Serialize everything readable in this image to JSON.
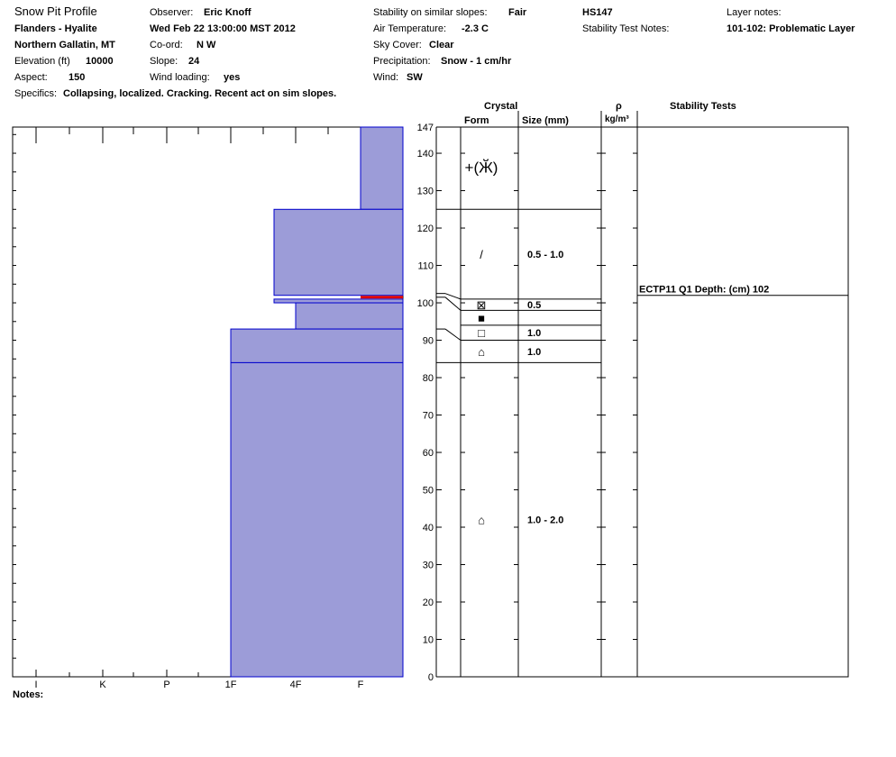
{
  "header": {
    "title": "Snow Pit Profile",
    "location": "Flanders - Hyalite",
    "region": "Northern Gallatin, MT",
    "elevation_label": "Elevation (ft)",
    "elevation": "10000",
    "aspect_label": "Aspect:",
    "aspect": "150",
    "specifics_label": "Specifics:",
    "specifics": "Collapsing, localized. Cracking. Recent act on sim slopes.",
    "observer_label": "Observer:",
    "observer": "Eric Knoff",
    "datetime": "Wed Feb 22 13:00:00 MST 2012",
    "coord_label": "Co-ord:",
    "coord": "N  W",
    "slope_label": "Slope:",
    "slope": "24",
    "wind_loading_label": "Wind loading:",
    "wind_loading": "yes",
    "stability_label": "Stability on similar slopes:",
    "stability": "Fair",
    "air_temp_label": "Air Temperature:",
    "air_temp": "-2.3 C",
    "sky_label": "Sky Cover:",
    "sky": "Clear",
    "precip_label": "Precipitation:",
    "precip": "Snow - 1 cm/hr",
    "wind_label": "Wind:",
    "wind": "SW",
    "hs": "HS147",
    "stability_test_notes_label": "Stability Test Notes:",
    "layer_notes_label": "Layer notes:",
    "layer_notes": "101-102: Problematic Layer"
  },
  "notes_label": "Notes:",
  "columns": {
    "crystal": "Crystal",
    "form": "Form",
    "size": "Size (mm)",
    "rho": "ρ",
    "density_unit": "kg/m³",
    "stability_tests": "Stability Tests"
  },
  "colors": {
    "layer_fill": "#9c9cd8",
    "layer_stroke": "#0000cc",
    "weak_layer": "#dd0000"
  },
  "chart_data": {
    "type": "snow-profile",
    "hardness_scale": [
      "I",
      "K",
      "P",
      "1F",
      "4F",
      "F"
    ],
    "depth_range": [
      0,
      147
    ],
    "depth_ticks": [
      0,
      10,
      20,
      30,
      40,
      50,
      60,
      70,
      80,
      90,
      100,
      110,
      120,
      130,
      140,
      147
    ],
    "layers": [
      {
        "top": 147,
        "bottom": 125,
        "hardness": "F"
      },
      {
        "top": 125,
        "bottom": 102,
        "hardness": "4F-"
      },
      {
        "top": 102,
        "bottom": 101,
        "hardness": "F",
        "weak": true
      },
      {
        "top": 101,
        "bottom": 100,
        "hardness": "4F-"
      },
      {
        "top": 100,
        "bottom": 93,
        "hardness": "4F+"
      },
      {
        "top": 93,
        "bottom": 84,
        "hardness": "1F"
      },
      {
        "top": 84,
        "bottom": 0,
        "hardness": "1F"
      }
    ],
    "crystal_rows": [
      {
        "top": 147,
        "bottom": 125,
        "form": "+(Ӂ)",
        "size": ""
      },
      {
        "top": 125,
        "bottom": 101,
        "form": "/",
        "size": "0.5 - 1.0"
      },
      {
        "top": 101,
        "bottom": 98,
        "form": "⊠",
        "size": "0.5"
      },
      {
        "top": 98,
        "bottom": 94,
        "form": "■",
        "size": ""
      },
      {
        "top": 94,
        "bottom": 90,
        "form": "□",
        "size": "1.0"
      },
      {
        "top": 90,
        "bottom": 84,
        "form": "⌂",
        "size": "1.0"
      },
      {
        "top": 84,
        "bottom": 0,
        "form": "⌂",
        "size": "1.0 - 2.0"
      }
    ],
    "stability_tests": [
      {
        "depth": 102,
        "label": "ECTP11 Q1 Depth: (cm) 102"
      }
    ]
  }
}
